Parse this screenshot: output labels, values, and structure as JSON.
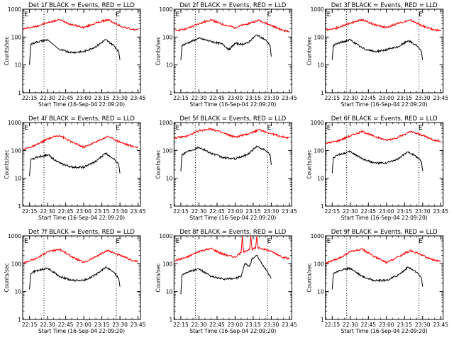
{
  "figure": {
    "panel_rows": 3,
    "panel_cols": 3,
    "colors": {
      "background": "#ffffff",
      "axes": "#000000",
      "events": "#000000",
      "lld": "#ff0000"
    }
  },
  "chart_data": [
    {
      "type": "line",
      "title": "Det 1f BLACK = Events, RED = LLD",
      "ylabel": "Counts/sec",
      "xlabel": "Start Time (16-Sep-04 22:09:20)",
      "y_scale": "log",
      "ylim": [
        1,
        1000
      ],
      "yticks": [
        "1",
        "10",
        "100",
        "1000"
      ],
      "xlim": [
        "22:09:20",
        "23:47"
      ],
      "xticks": [
        "22:15",
        "22:30",
        "22:45",
        "23:00",
        "23:15",
        "23:30",
        "23:45"
      ],
      "vlines": [
        "22:27",
        "23:27"
      ],
      "markers": [
        {
          "label": "E",
          "x": "22:10"
        },
        {
          "label": "E",
          "x": "23:26"
        }
      ],
      "series": [
        {
          "color": "#ff0000",
          "x": [
            "22:10",
            "22:20",
            "22:30",
            "22:40",
            "22:50",
            "23:00",
            "23:10",
            "23:20",
            "23:30",
            "23:40",
            "23:45"
          ],
          "y": [
            200,
            240,
            330,
            420,
            280,
            220,
            320,
            420,
            250,
            190,
            180
          ]
        },
        {
          "color": "#000000",
          "x": [
            "22:15",
            "22:16",
            "22:20",
            "22:30",
            "22:40",
            "22:50",
            "23:00",
            "23:10",
            "23:18",
            "23:25",
            "23:29",
            "23:30"
          ],
          "y": [
            10,
            55,
            65,
            80,
            35,
            28,
            30,
            45,
            80,
            50,
            30,
            15
          ]
        }
      ]
    },
    {
      "type": "line",
      "title": "Det 2f BLACK = Events, RED = LLD",
      "ylabel": "Counts/sec",
      "xlabel": "Start Time (16-Sep-04 22:09:20)",
      "y_scale": "log",
      "ylim": [
        1,
        1000
      ],
      "yticks": [
        "1",
        "10",
        "100",
        "1000"
      ],
      "xlim": [
        "22:09:20",
        "23:47"
      ],
      "xticks": [
        "22:15",
        "22:30",
        "22:45",
        "23:00",
        "23:15",
        "23:30",
        "23:45"
      ],
      "vlines": [
        "22:27",
        "23:27"
      ],
      "markers": [
        {
          "label": "E",
          "x": "22:10"
        },
        {
          "label": "E",
          "x": "23:26"
        }
      ],
      "series": [
        {
          "color": "#ff0000",
          "x": [
            "22:10",
            "22:20",
            "22:30",
            "22:40",
            "22:50",
            "23:00",
            "23:10",
            "23:20",
            "23:30",
            "23:40",
            "23:45"
          ],
          "y": [
            170,
            200,
            300,
            420,
            280,
            220,
            300,
            400,
            260,
            170,
            160
          ]
        },
        {
          "color": "#000000",
          "x": [
            "22:15",
            "22:16",
            "22:20",
            "22:30",
            "22:40",
            "22:50",
            "22:55",
            "23:00",
            "23:05",
            "23:10",
            "23:18",
            "23:25",
            "23:29",
            "23:30"
          ],
          "y": [
            15,
            50,
            60,
            90,
            70,
            55,
            35,
            60,
            55,
            60,
            120,
            80,
            50,
            20
          ]
        }
      ]
    },
    {
      "type": "line",
      "title": "Det 3f BLACK = Events, RED = LLD",
      "ylabel": "Counts/sec",
      "xlabel": "Start Time (16-Sep-04 22:09:20)",
      "y_scale": "log",
      "ylim": [
        1,
        1000
      ],
      "yticks": [
        "1",
        "10",
        "100",
        "1000"
      ],
      "xlim": [
        "22:09:20",
        "23:47"
      ],
      "xticks": [
        "22:15",
        "22:30",
        "22:45",
        "23:00",
        "23:15",
        "23:30",
        "23:45"
      ],
      "vlines": [
        "22:27",
        "23:27"
      ],
      "markers": [
        {
          "label": "E",
          "x": "22:10"
        },
        {
          "label": "E",
          "x": "23:26"
        }
      ],
      "series": [
        {
          "color": "#ff0000",
          "x": [
            "22:10",
            "22:20",
            "22:30",
            "22:40",
            "22:50",
            "23:00",
            "23:10",
            "23:20",
            "23:30",
            "23:40",
            "23:45"
          ],
          "y": [
            180,
            220,
            320,
            420,
            280,
            220,
            320,
            400,
            250,
            180,
            170
          ]
        },
        {
          "color": "#000000",
          "x": [
            "22:15",
            "22:16",
            "22:20",
            "22:30",
            "22:40",
            "22:50",
            "23:00",
            "23:10",
            "23:18",
            "23:25",
            "23:29",
            "23:30"
          ],
          "y": [
            15,
            50,
            60,
            80,
            40,
            30,
            35,
            45,
            75,
            50,
            30,
            15
          ]
        }
      ]
    },
    {
      "type": "line",
      "title": "Det 4f BLACK = Events, RED = LLD",
      "ylabel": "Counts/sec",
      "xlabel": "Start Time (16-Sep-04 22:09:20)",
      "y_scale": "log",
      "ylim": [
        1,
        1000
      ],
      "yticks": [
        "1",
        "10",
        "100",
        "1000"
      ],
      "xlim": [
        "22:09:20",
        "23:47"
      ],
      "xticks": [
        "22:15",
        "22:30",
        "22:45",
        "23:00",
        "23:15",
        "23:30",
        "23:45"
      ],
      "vlines": [
        "22:27",
        "23:27"
      ],
      "markers": [
        {
          "label": "E",
          "x": "22:10"
        },
        {
          "label": "E",
          "x": "23:26"
        }
      ],
      "series": [
        {
          "color": "#ff0000",
          "x": [
            "22:10",
            "22:20",
            "22:30",
            "22:40",
            "22:50",
            "23:00",
            "23:10",
            "23:20",
            "23:30",
            "23:40",
            "23:45"
          ],
          "y": [
            110,
            150,
            260,
            350,
            200,
            130,
            200,
            320,
            200,
            140,
            130
          ]
        },
        {
          "color": "#000000",
          "x": [
            "22:15",
            "22:16",
            "22:20",
            "22:30",
            "22:40",
            "22:50",
            "23:00",
            "23:10",
            "23:18",
            "23:25",
            "23:29",
            "23:30"
          ],
          "y": [
            12,
            45,
            55,
            70,
            35,
            25,
            25,
            40,
            80,
            50,
            30,
            15
          ]
        }
      ]
    },
    {
      "type": "line",
      "title": "Det 5f BLACK = Events, RED = LLD",
      "ylabel": "Counts/sec",
      "xlabel": "Start Time (16-Sep-04 22:09:20)",
      "y_scale": "log",
      "ylim": [
        1,
        1000
      ],
      "yticks": [
        "1",
        "10",
        "100",
        "1000"
      ],
      "xlim": [
        "22:09:20",
        "23:47"
      ],
      "xticks": [
        "22:15",
        "22:30",
        "22:45",
        "23:00",
        "23:15",
        "23:30",
        "23:45"
      ],
      "vlines": [
        "22:27",
        "23:27"
      ],
      "markers": [
        {
          "label": "E",
          "x": "22:10"
        },
        {
          "label": "E",
          "x": "23:26"
        }
      ],
      "series": [
        {
          "color": "#ff0000",
          "x": [
            "22:10",
            "22:20",
            "22:30",
            "22:40",
            "22:50",
            "23:00",
            "23:10",
            "23:20",
            "23:30",
            "23:40",
            "23:45"
          ],
          "y": [
            280,
            320,
            500,
            600,
            420,
            300,
            380,
            550,
            400,
            300,
            280
          ]
        },
        {
          "color": "#000000",
          "x": [
            "22:15",
            "22:16",
            "22:20",
            "22:30",
            "22:40",
            "22:50",
            "23:00",
            "23:10",
            "23:18",
            "23:25",
            "23:29",
            "23:30"
          ],
          "y": [
            18,
            70,
            90,
            130,
            80,
            55,
            50,
            70,
            140,
            100,
            70,
            30
          ]
        }
      ]
    },
    {
      "type": "line",
      "title": "Det 6f BLACK = Events, RED = LLD",
      "ylabel": "Counts/sec",
      "xlabel": "Start Time (16-Sep-04 22:09:20)",
      "y_scale": "log",
      "ylim": [
        1,
        1000
      ],
      "yticks": [
        "1",
        "10",
        "100",
        "1000"
      ],
      "xlim": [
        "22:09:20",
        "23:47"
      ],
      "xticks": [
        "22:15",
        "22:30",
        "22:45",
        "23:00",
        "23:15",
        "23:30",
        "23:45"
      ],
      "vlines": [
        "22:27",
        "23:27"
      ],
      "markers": [
        {
          "label": "E",
          "x": "22:10"
        },
        {
          "label": "E",
          "x": "23:26"
        }
      ],
      "series": [
        {
          "color": "#ff0000",
          "x": [
            "22:10",
            "22:20",
            "22:30",
            "22:40",
            "22:50",
            "23:00",
            "23:10",
            "23:20",
            "23:30",
            "23:40",
            "23:45"
          ],
          "y": [
            180,
            220,
            330,
            480,
            320,
            230,
            300,
            470,
            350,
            230,
            220
          ]
        },
        {
          "color": "#000000",
          "x": [
            "22:15",
            "22:16",
            "22:20",
            "22:30",
            "22:40",
            "22:50",
            "23:00",
            "23:10",
            "23:18",
            "23:25",
            "23:29",
            "23:30"
          ],
          "y": [
            15,
            55,
            70,
            90,
            50,
            35,
            35,
            50,
            90,
            60,
            40,
            18
          ]
        }
      ]
    },
    {
      "type": "line",
      "title": "Det 7f BLACK = Events, RED = LLD",
      "ylabel": "Counts/sec",
      "xlabel": "Start Time (16-Sep-04 22:09:20)",
      "y_scale": "log",
      "ylim": [
        1,
        1000
      ],
      "yticks": [
        "1",
        "10",
        "100",
        "1000"
      ],
      "xlim": [
        "22:09:20",
        "23:47"
      ],
      "xticks": [
        "22:15",
        "22:30",
        "22:45",
        "23:00",
        "23:15",
        "23:30",
        "23:45"
      ],
      "vlines": [
        "22:27",
        "23:27"
      ],
      "markers": [
        {
          "label": "E",
          "x": "22:10"
        },
        {
          "label": "E",
          "x": "23:26"
        }
      ],
      "series": [
        {
          "color": "#ff0000",
          "x": [
            "22:10",
            "22:20",
            "22:30",
            "22:40",
            "22:50",
            "23:00",
            "23:10",
            "23:20",
            "23:30",
            "23:40",
            "23:45"
          ],
          "y": [
            110,
            150,
            270,
            330,
            180,
            110,
            180,
            300,
            200,
            130,
            120
          ]
        },
        {
          "color": "#000000",
          "x": [
            "22:15",
            "22:16",
            "22:20",
            "22:30",
            "22:40",
            "22:50",
            "23:00",
            "23:10",
            "23:18",
            "23:25",
            "23:29",
            "23:30"
          ],
          "y": [
            12,
            45,
            55,
            70,
            35,
            25,
            25,
            40,
            75,
            50,
            30,
            15
          ]
        }
      ]
    },
    {
      "type": "line",
      "title": "Det 8f BLACK = Events, RED = LLD",
      "ylabel": "Counts/sec",
      "xlabel": "Start Time (16-Sep-04 22:09:20)",
      "y_scale": "log",
      "ylim": [
        1,
        1000
      ],
      "yticks": [
        "1",
        "10",
        "100",
        "1000"
      ],
      "xlim": [
        "22:09:20",
        "23:47"
      ],
      "xticks": [
        "22:15",
        "22:30",
        "22:45",
        "23:00",
        "23:15",
        "23:30",
        "23:45"
      ],
      "vlines": [
        "22:27",
        "23:27"
      ],
      "markers": [
        {
          "label": "E",
          "x": "22:10"
        },
        {
          "label": "E",
          "x": "23:26"
        }
      ],
      "series": [
        {
          "color": "#ff0000",
          "x": [
            "22:10",
            "22:20",
            "22:30",
            "22:40",
            "22:50",
            "23:00",
            "23:05",
            "23:06",
            "23:07",
            "23:09",
            "23:12",
            "23:13",
            "23:14",
            "23:17",
            "23:18",
            "23:19",
            "23:22",
            "23:30",
            "23:40",
            "23:45"
          ],
          "y": [
            130,
            170,
            280,
            350,
            220,
            170,
            250,
            1000,
            260,
            300,
            320,
            1000,
            330,
            360,
            1000,
            370,
            350,
            280,
            170,
            150
          ]
        },
        {
          "color": "#000000",
          "x": [
            "22:15",
            "22:16",
            "22:20",
            "22:30",
            "22:40",
            "22:50",
            "23:00",
            "23:05",
            "23:08",
            "23:12",
            "23:14",
            "23:18",
            "23:22",
            "23:26",
            "23:30"
          ],
          "y": [
            8,
            40,
            50,
            65,
            35,
            28,
            30,
            35,
            100,
            80,
            150,
            200,
            100,
            60,
            30
          ]
        }
      ]
    },
    {
      "type": "line",
      "title": "Det 9f BLACK = Events, RED = LLD",
      "ylabel": "Counts/sec",
      "xlabel": "Start Time (16-Sep-04 22:09:20)",
      "y_scale": "log",
      "ylim": [
        1,
        1000
      ],
      "yticks": [
        "1",
        "10",
        "100",
        "1000"
      ],
      "xlim": [
        "22:09:20",
        "23:47"
      ],
      "xticks": [
        "22:15",
        "22:30",
        "22:45",
        "23:00",
        "23:15",
        "23:30",
        "23:45"
      ],
      "vlines": [
        "22:27",
        "23:27"
      ],
      "markers": [
        {
          "label": "E",
          "x": "22:10"
        },
        {
          "label": "E",
          "x": "23:26"
        }
      ],
      "series": [
        {
          "color": "#ff0000",
          "x": [
            "22:10",
            "22:20",
            "22:30",
            "22:40",
            "22:50",
            "23:00",
            "23:10",
            "23:20",
            "23:30",
            "23:40",
            "23:45"
          ],
          "y": [
            110,
            150,
            270,
            330,
            180,
            110,
            180,
            300,
            200,
            130,
            120
          ]
        },
        {
          "color": "#000000",
          "x": [
            "22:15",
            "22:16",
            "22:20",
            "22:30",
            "22:40",
            "22:50",
            "23:00",
            "23:10",
            "23:18",
            "23:25",
            "23:29",
            "23:30"
          ],
          "y": [
            12,
            45,
            55,
            70,
            35,
            25,
            25,
            40,
            75,
            50,
            30,
            15
          ]
        }
      ]
    }
  ]
}
